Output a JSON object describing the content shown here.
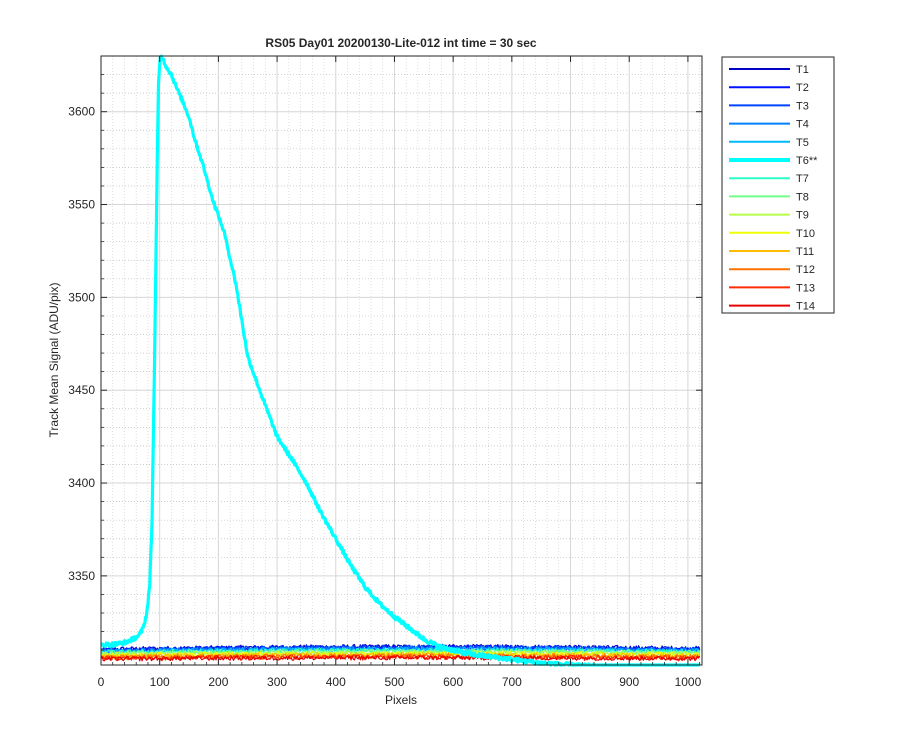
{
  "chart_data": {
    "type": "line",
    "title": "RS05 Day01 20200130-Lite-012 int time = 30 sec",
    "xlabel": "Pixels",
    "ylabel": "Track Mean Signal (ADU/pix)",
    "xlim": [
      0,
      1024
    ],
    "ylim": [
      3302,
      3630
    ],
    "x_ticks": [
      0,
      100,
      200,
      300,
      400,
      500,
      600,
      700,
      800,
      900,
      1000
    ],
    "y_ticks": [
      3350,
      3400,
      3450,
      3500,
      3550,
      3600
    ],
    "grid": "major and minor",
    "legend_position": "outside-right",
    "highlighted_series": "T6**",
    "series": [
      {
        "name": "T1",
        "color": "#0000c4",
        "baseline": 3310.5,
        "slope": 0.001,
        "hump": 1.2
      },
      {
        "name": "T2",
        "color": "#0015ff",
        "baseline": 3310.0,
        "slope": 0.0012,
        "hump": 1.4
      },
      {
        "name": "T3",
        "color": "#0046ff",
        "baseline": 3309.8,
        "slope": 0.0012,
        "hump": 1.5
      },
      {
        "name": "T4",
        "color": "#0080ff",
        "baseline": 3309.5,
        "slope": 0.001,
        "hump": 1.2
      },
      {
        "name": "T5",
        "color": "#00baff",
        "baseline": 3309.3,
        "slope": 0.0009,
        "hump": 1.0
      },
      {
        "name": "T6**",
        "color": "#00ffff",
        "x": [
          0,
          20,
          40,
          55,
          65,
          72,
          78,
          83,
          87,
          91,
          95,
          98,
          101,
          105,
          110,
          120,
          130,
          140,
          150,
          160,
          175,
          190,
          210,
          230,
          250,
          275,
          300,
          325,
          350,
          375,
          400,
          425,
          450,
          475,
          500,
          525,
          550,
          575,
          600,
          625,
          650,
          675,
          700,
          725,
          750,
          800,
          850,
          900,
          950,
          1000,
          1020
        ],
        "values": [
          3313,
          3313,
          3314,
          3316,
          3318,
          3322,
          3330,
          3345,
          3380,
          3460,
          3555,
          3615,
          3630,
          3629,
          3625,
          3620,
          3612,
          3605,
          3597,
          3585,
          3570,
          3553,
          3535,
          3507,
          3468,
          3446,
          3425,
          3413,
          3400,
          3384,
          3370,
          3356,
          3344,
          3335,
          3328,
          3322,
          3316,
          3312,
          3310,
          3308,
          3307,
          3306,
          3305,
          3304,
          3303,
          3302,
          3301,
          3300,
          3300,
          3299,
          3299
        ]
      },
      {
        "name": "T7",
        "color": "#2cffc8",
        "baseline": 3308.8,
        "slope": 0.0008,
        "hump": 0.9
      },
      {
        "name": "T8",
        "color": "#70ff8c",
        "baseline": 3308.3,
        "slope": 0.0007,
        "hump": 0.8
      },
      {
        "name": "T9",
        "color": "#b4ff48",
        "baseline": 3307.8,
        "slope": 0.0006,
        "hump": 0.7
      },
      {
        "name": "T10",
        "color": "#f0ff00",
        "baseline": 3307.3,
        "slope": 0.0006,
        "hump": 0.7
      },
      {
        "name": "T11",
        "color": "#ffbc00",
        "baseline": 3306.8,
        "slope": 0.0005,
        "hump": 0.6
      },
      {
        "name": "T12",
        "color": "#ff7400",
        "baseline": 3306.2,
        "slope": 0.0005,
        "hump": 0.6
      },
      {
        "name": "T13",
        "color": "#ff2c00",
        "baseline": 3305.7,
        "slope": 0.0004,
        "hump": 0.5
      },
      {
        "name": "T14",
        "color": "#e60000",
        "baseline": 3305.3,
        "slope": 0.0004,
        "hump": 0.5
      }
    ]
  }
}
